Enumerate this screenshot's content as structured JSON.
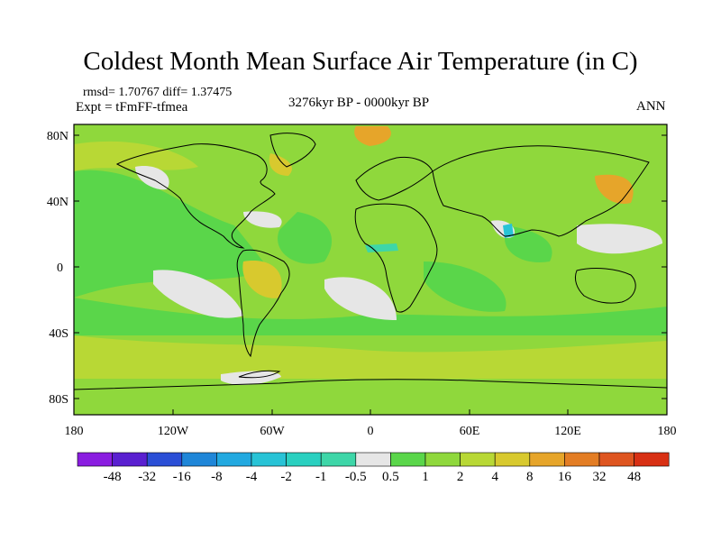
{
  "title": "Coldest Month Mean Surface Air Temperature (in C)",
  "stats": "rmsd= 1.70767 diff= 1.37475",
  "expt": "Expt = tFmFF-tfmea",
  "period": "3276kyr BP - 0000kyr BP",
  "season": "ANN",
  "lat_labels": [
    "80N",
    "40N",
    "0",
    "40S",
    "80S"
  ],
  "lon_labels": [
    "180",
    "120W",
    "60W",
    "0",
    "60E",
    "120E",
    "180"
  ],
  "colorbar": {
    "labels": [
      "-48",
      "-32",
      "-16",
      "-8",
      "-4",
      "-2",
      "-1",
      "-0.5",
      "0.5",
      "1",
      "2",
      "4",
      "8",
      "16",
      "32",
      "48"
    ],
    "colors": [
      "#8a1de0",
      "#5a20d0",
      "#2b4fd6",
      "#1f86d8",
      "#22a9e0",
      "#28c3d6",
      "#2ad0c0",
      "#3ed6a8",
      "#e6e6e6",
      "#5ad64a",
      "#8fd83c",
      "#b8d835",
      "#d8c92e",
      "#e6a52a",
      "#e37d24",
      "#de5520",
      "#d83014"
    ]
  },
  "legend_meaning": {
    "white": "-0.5 to 0.5",
    "green": "0.5 to 2",
    "yellow-orange": "2 to 8"
  }
}
